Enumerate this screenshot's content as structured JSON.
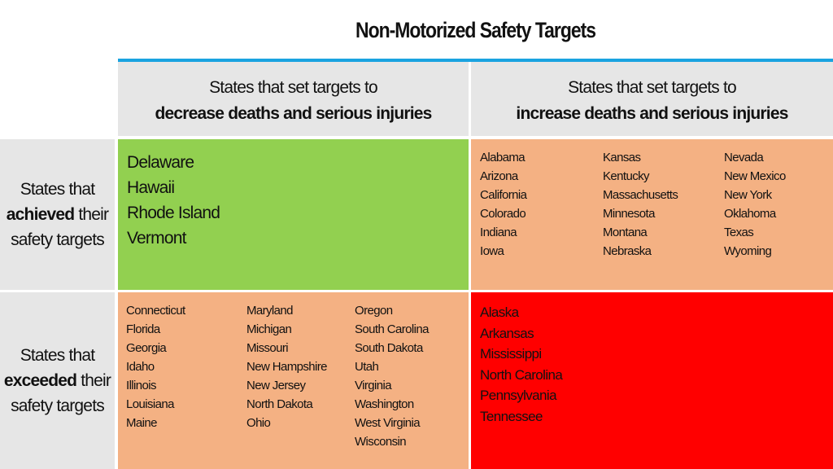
{
  "title": "Non-Motorized Safety Targets",
  "colors": {
    "accent": "#1aa3e0",
    "header_bg": "#e6e6e6",
    "green": "#92d050",
    "orange": "#f4b183",
    "red": "#ff0000"
  },
  "columns": [
    {
      "line1": "States that set targets to",
      "line2": "decrease deaths and serious injuries"
    },
    {
      "line1": "States that set targets to",
      "line2": "increase deaths and serious injuries"
    }
  ],
  "rows": [
    {
      "line1": "States that",
      "bold": "achieved",
      "rest": " their",
      "line3": "safety targets"
    },
    {
      "line1": "States that",
      "bold": "exceeded",
      "rest": " their",
      "line3": "safety targets"
    }
  ],
  "cells": {
    "achieved_decrease": [
      "Delaware",
      "Hawaii",
      "Rhode Island",
      "Vermont"
    ],
    "achieved_increase": [
      [
        "Alabama",
        "Arizona",
        "California",
        "Colorado",
        "Indiana",
        "Iowa"
      ],
      [
        "Kansas",
        "Kentucky",
        "Massachusetts",
        "Minnesota",
        "Montana",
        "Nebraska"
      ],
      [
        "Nevada",
        "New Mexico",
        "New York",
        "Oklahoma",
        "Texas",
        "Wyoming"
      ]
    ],
    "exceeded_decrease": [
      [
        "Connecticut",
        "Florida",
        "Georgia",
        "Idaho",
        "Illinois",
        "Louisiana",
        "Maine"
      ],
      [
        "Maryland",
        "Michigan",
        "Missouri",
        "New Hampshire",
        "New Jersey",
        "North Dakota",
        "Ohio"
      ],
      [
        "Oregon",
        "South Carolina",
        "South Dakota",
        "Utah",
        "Virginia",
        "Washington",
        "West Virginia",
        "Wisconsin"
      ]
    ],
    "exceeded_increase": [
      "Alaska",
      "Arkansas",
      "Mississippi",
      "North Carolina",
      "Pennsylvania",
      "Tennessee"
    ]
  }
}
